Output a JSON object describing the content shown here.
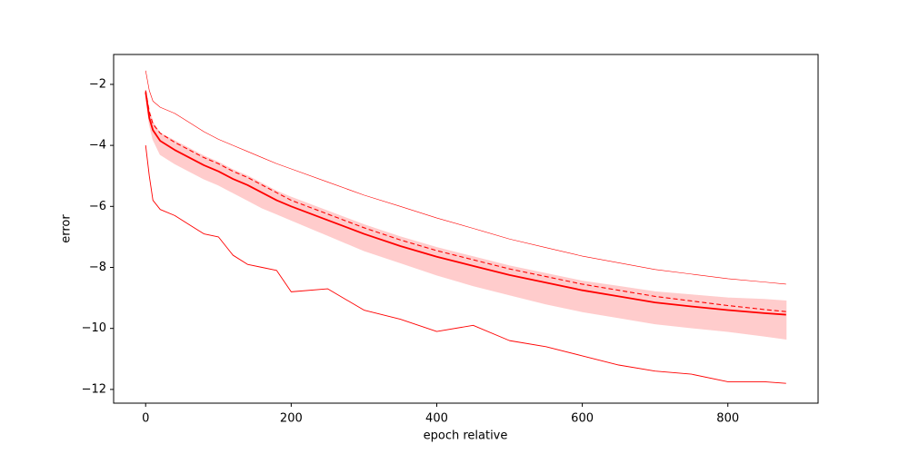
{
  "chart_data": {
    "type": "line",
    "xlabel": "epoch relative",
    "ylabel": "error",
    "x": [
      0,
      5,
      10,
      20,
      40,
      60,
      80,
      100,
      120,
      140,
      160,
      180,
      200,
      250,
      300,
      350,
      400,
      450,
      500,
      550,
      600,
      650,
      700,
      750,
      800,
      850,
      880
    ],
    "xlim": [
      -44,
      924
    ],
    "ylim": [
      -12.45,
      -1.02
    ],
    "xticks": [
      0,
      200,
      400,
      600,
      800
    ],
    "yticks": [
      {
        "value": -12,
        "label": "−12"
      },
      {
        "value": -10,
        "label": "−10"
      },
      {
        "value": -8,
        "label": "−8"
      },
      {
        "value": -6,
        "label": "−6"
      },
      {
        "value": -4,
        "label": "−4"
      },
      {
        "value": -2,
        "label": "−2"
      }
    ],
    "band": {
      "color": "#ffcccc",
      "upper": [
        -2.2,
        -2.85,
        -3.25,
        -3.6,
        -3.85,
        -4.1,
        -4.35,
        -4.55,
        -4.8,
        -5.0,
        -5.25,
        -5.5,
        -5.7,
        -6.15,
        -6.6,
        -7.0,
        -7.35,
        -7.65,
        -7.95,
        -8.2,
        -8.45,
        -8.62,
        -8.8,
        -8.9,
        -9.0,
        -9.05,
        -9.1
      ],
      "lower": [
        -2.3,
        -3.3,
        -3.8,
        -4.3,
        -4.6,
        -4.85,
        -5.1,
        -5.3,
        -5.55,
        -5.8,
        -6.05,
        -6.25,
        -6.45,
        -6.95,
        -7.45,
        -7.85,
        -8.25,
        -8.6,
        -8.9,
        -9.2,
        -9.45,
        -9.65,
        -9.85,
        -9.98,
        -10.1,
        -10.25,
        -10.35
      ]
    },
    "series": [
      {
        "color": "#ff0000",
        "values": [
          -1.55,
          -2.2,
          -2.55,
          -2.75,
          -2.95,
          -3.25,
          -3.55,
          -3.8,
          -4.0,
          -4.2,
          -4.4,
          -4.6,
          -4.77,
          -5.2,
          -5.63,
          -6.0,
          -6.38,
          -6.72,
          -7.07,
          -7.35,
          -7.63,
          -7.85,
          -8.07,
          -8.22,
          -8.37,
          -8.48,
          -8.55
        ]
      },
      {
        "color": "#ff0000",
        "linestyle": "dashed",
        "values": [
          -2.2,
          -2.9,
          -3.3,
          -3.6,
          -3.9,
          -4.15,
          -4.4,
          -4.6,
          -4.85,
          -5.05,
          -5.3,
          -5.55,
          -5.8,
          -6.25,
          -6.7,
          -7.1,
          -7.45,
          -7.75,
          -8.05,
          -8.3,
          -8.55,
          -8.75,
          -8.95,
          -9.1,
          -9.25,
          -9.38,
          -9.45
        ]
      },
      {
        "color": "#ff0000",
        "values": [
          -2.25,
          -3.1,
          -3.5,
          -3.85,
          -4.15,
          -4.4,
          -4.65,
          -4.85,
          -5.1,
          -5.3,
          -5.55,
          -5.8,
          -6.0,
          -6.45,
          -6.9,
          -7.3,
          -7.65,
          -7.95,
          -8.25,
          -8.5,
          -8.75,
          -8.95,
          -9.15,
          -9.28,
          -9.4,
          -9.5,
          -9.55
        ]
      },
      {
        "color": "#ff0000",
        "values": [
          -4.0,
          -5.0,
          -5.8,
          -6.1,
          -6.3,
          -6.6,
          -6.9,
          -7.0,
          -7.6,
          -7.9,
          -8.0,
          -8.1,
          -8.8,
          -8.7,
          -9.4,
          -9.7,
          -10.1,
          -9.9,
          -10.4,
          -10.6,
          -10.9,
          -11.2,
          -11.4,
          -11.5,
          -11.75,
          -11.75,
          -11.8
        ]
      }
    ]
  }
}
